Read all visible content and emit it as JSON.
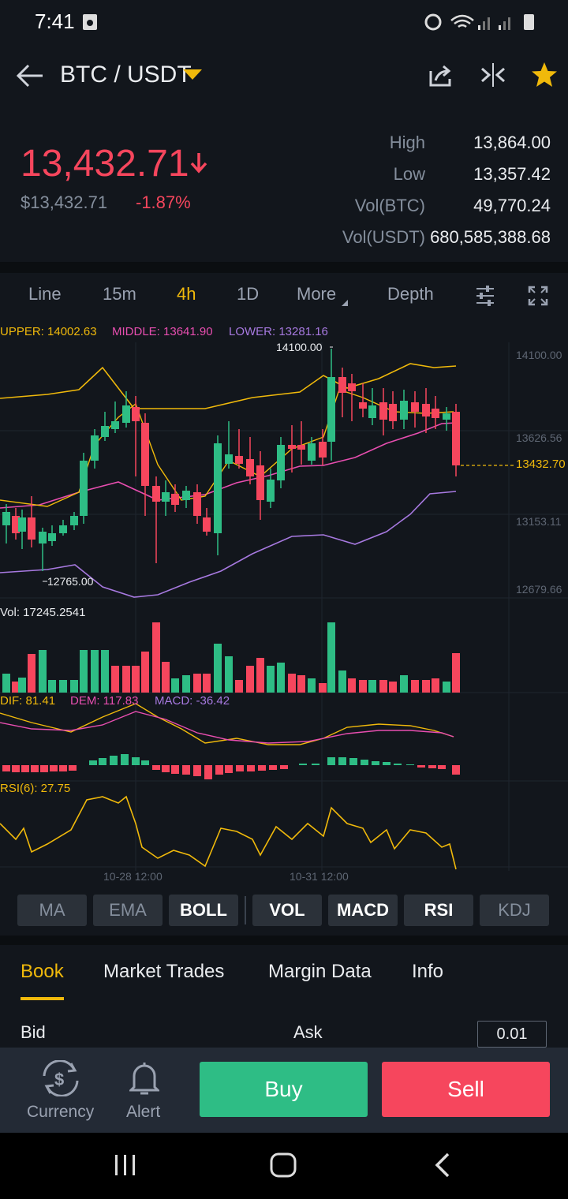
{
  "status": {
    "time": "7:41"
  },
  "header": {
    "pair": "BTC / USDT"
  },
  "ticker": {
    "price": "13,432.71",
    "fiat": "$13,432.71",
    "change": "-1.87%",
    "stats": [
      {
        "label": "High",
        "value": "13,864.00"
      },
      {
        "label": "Low",
        "value": "13,357.42"
      },
      {
        "label": "Vol(BTC)",
        "value": "49,770.24"
      },
      {
        "label": "Vol(USDT)",
        "value": "680,585,388.68"
      }
    ]
  },
  "toolbar": {
    "line": "Line",
    "m15": "15m",
    "h4": "4h",
    "d1": "1D",
    "more": "More",
    "depth": "Depth"
  },
  "chart": {
    "boll": {
      "upper": "UPPER: 14002.63",
      "middle": "MIDDLE: 13641.90",
      "lower": "LOWER: 13281.16"
    },
    "high_mark": "14100.00",
    "low_mark": "12765.00",
    "last_price": "13432.70",
    "price_ticks": [
      "14100.00",
      "13626.56",
      "13153.11",
      "12679.66"
    ],
    "vol_label": "Vol: 17245.2541",
    "macd": {
      "dif": "DIF: 81.41",
      "dem": "DEM: 117.83",
      "macd": "MACD: -36.42"
    },
    "rsi": "RSI(6): 27.75",
    "dates": [
      "10-28 12:00",
      "10-31 12:00"
    ]
  },
  "indicators": [
    "MA",
    "EMA",
    "BOLL",
    "VOL",
    "MACD",
    "RSI",
    "KDJ"
  ],
  "tabs": {
    "book": "Book",
    "trades": "Market Trades",
    "margin": "Margin Data",
    "info": "Info"
  },
  "orderbook": {
    "bid": "Bid",
    "ask": "Ask",
    "precision": "0.01"
  },
  "bottom": {
    "currency": "Currency",
    "alert": "Alert",
    "buy": "Buy",
    "sell": "Sell"
  },
  "colors": {
    "up": "#2ebd85",
    "down": "#f6465d",
    "accent": "#f0b90b"
  }
}
